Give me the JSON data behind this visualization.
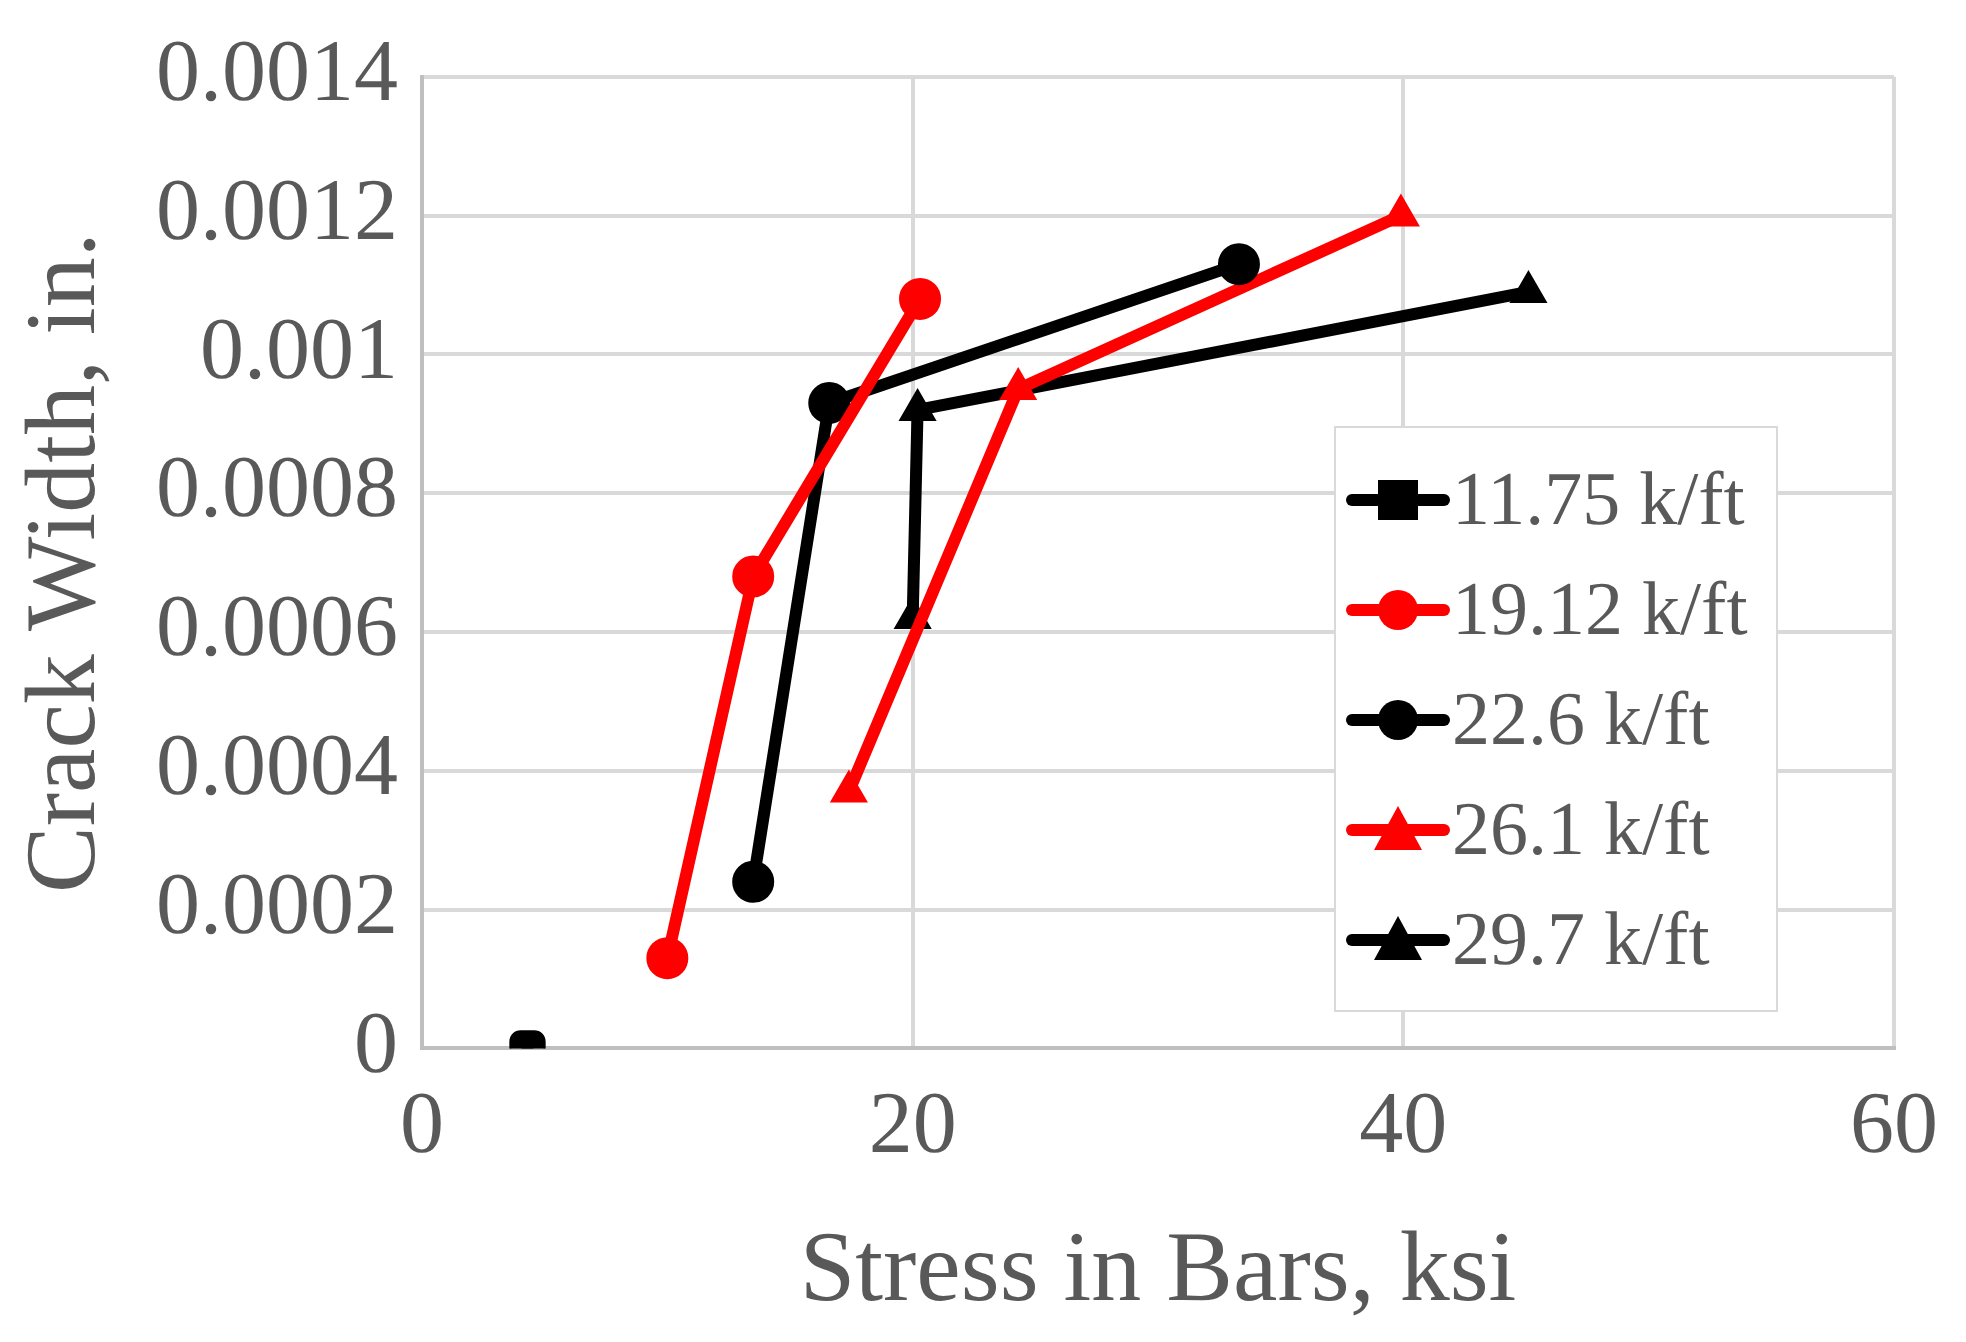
{
  "chart_data": {
    "type": "line",
    "xlabel": "Stress in Bars, ksi",
    "ylabel": "Crack Width, in.",
    "xlim": [
      0,
      60
    ],
    "xticks": [
      0,
      20,
      40,
      60
    ],
    "ylim": [
      0,
      0.0014
    ],
    "yticks": [
      0,
      0.0002,
      0.0004,
      0.0006,
      0.0008,
      0.001,
      0.0012,
      0.0014
    ],
    "grid": true,
    "legend": "right",
    "line_style": "solid",
    "series": [
      {
        "name": "11.75 k/ft",
        "color": "#000000",
        "marker": "square",
        "x": [
          4.3
        ],
        "values": [
          0
        ]
      },
      {
        "name": "19.12 k/ft",
        "color": "#ff0000",
        "marker": "circle",
        "x": [
          10.0,
          13.5,
          20.3
        ],
        "values": [
          0.00013,
          0.00068,
          0.00108
        ]
      },
      {
        "name": "22.6 k/ft",
        "color": "#000000",
        "marker": "circle",
        "x": [
          13.5,
          16.6,
          33.3
        ],
        "values": [
          0.00024,
          0.00093,
          0.00113
        ]
      },
      {
        "name": "26.1 k/ft",
        "color": "#ff0000",
        "marker": "triangle",
        "x": [
          17.4,
          24.3,
          39.9
        ],
        "values": [
          0.00037,
          0.00095,
          0.0012
        ]
      },
      {
        "name": "29.7 k/ft",
        "color": "#000000",
        "marker": "triangle",
        "x": [
          20.0,
          20.2,
          45.1
        ],
        "values": [
          0.00062,
          0.00092,
          0.00109
        ]
      }
    ]
  }
}
